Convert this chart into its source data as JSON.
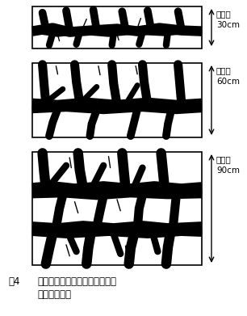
{
  "bg_color": "#ffffff",
  "crack_color": "#000000",
  "border_color": "#000000",
  "labels": [
    "条間隔",
    "条間隔",
    "条間隔"
  ],
  "distances": [
    "30cm",
    "60cm",
    "90cm"
  ],
  "caption_num": "围4",
  "caption_text": "条間隔の拡大による条に沿った",
  "caption_text2": "亀裂の複線化",
  "figsize": [
    3.06,
    3.91
  ],
  "dpi": 100,
  "font_size_label": 7.5,
  "font_size_dist": 7.5,
  "font_size_caption": 8.5
}
